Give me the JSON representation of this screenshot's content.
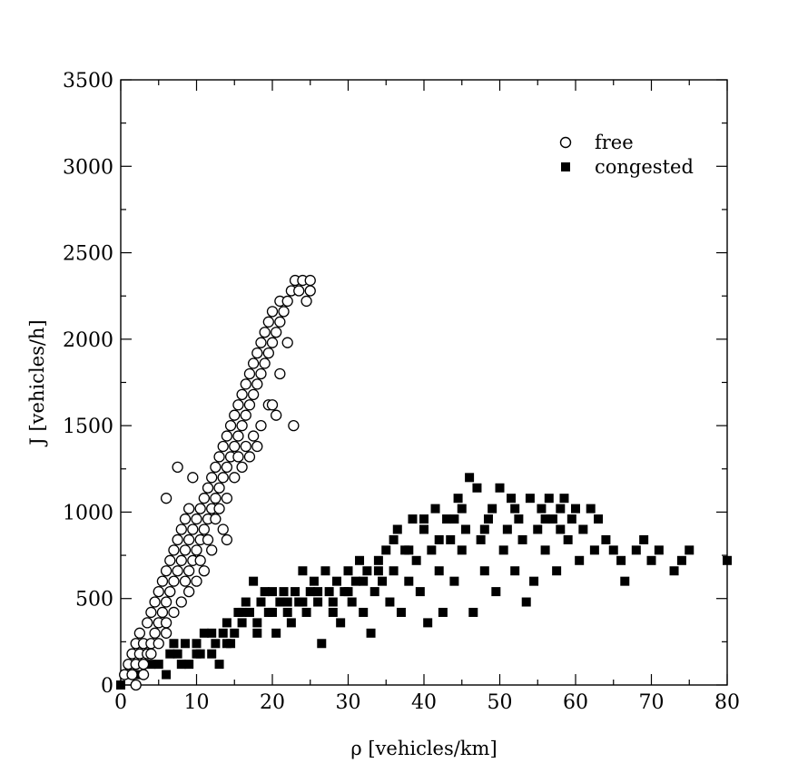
{
  "chart_data": {
    "type": "scatter",
    "title": "",
    "xlabel": "ρ [vehicles/km]",
    "ylabel": "J [vehicles/h]",
    "xlim": [
      0,
      80
    ],
    "ylim": [
      0,
      3500
    ],
    "xticks": [
      0,
      10,
      20,
      30,
      40,
      50,
      60,
      70,
      80
    ],
    "yticks": [
      0,
      500,
      1000,
      1500,
      2000,
      2500,
      3000,
      3500
    ],
    "xtick_labels": [
      "0",
      "10",
      "20",
      "30",
      "40",
      "50",
      "60",
      "70",
      "80"
    ],
    "ytick_labels": [
      "0",
      "500",
      "1000",
      "1500",
      "2000",
      "2500",
      "3000",
      "3500"
    ],
    "grid": false,
    "legend_position": "top-right",
    "series": [
      {
        "name": "free",
        "marker": "circle-open",
        "color": "#000000",
        "points": [
          [
            0.5,
            60
          ],
          [
            1,
            120
          ],
          [
            1.5,
            180
          ],
          [
            2,
            240
          ],
          [
            2.5,
            300
          ],
          [
            1.5,
            60
          ],
          [
            2,
            120
          ],
          [
            2.5,
            180
          ],
          [
            3,
            240
          ],
          [
            3,
            120
          ],
          [
            3.5,
            180
          ],
          [
            4,
            240
          ],
          [
            4.5,
            300
          ],
          [
            3.5,
            360
          ],
          [
            4,
            420
          ],
          [
            4.5,
            480
          ],
          [
            5,
            540
          ],
          [
            5,
            360
          ],
          [
            5.5,
            420
          ],
          [
            6,
            480
          ],
          [
            6,
            300
          ],
          [
            6.5,
            540
          ],
          [
            5.5,
            600
          ],
          [
            6,
            660
          ],
          [
            6.5,
            720
          ],
          [
            7,
            600
          ],
          [
            7,
            780
          ],
          [
            7.5,
            660
          ],
          [
            7.5,
            840
          ],
          [
            8,
            720
          ],
          [
            8,
            900
          ],
          [
            8.5,
            780
          ],
          [
            8.5,
            960
          ],
          [
            9,
            840
          ],
          [
            9,
            1020
          ],
          [
            9.5,
            900
          ],
          [
            9.5,
            720
          ],
          [
            10,
            960
          ],
          [
            10,
            780
          ],
          [
            10.5,
            840
          ],
          [
            10.5,
            1020
          ],
          [
            11,
            900
          ],
          [
            11,
            1080
          ],
          [
            11.5,
            960
          ],
          [
            11.5,
            1140
          ],
          [
            12,
            1020
          ],
          [
            12,
            1200
          ],
          [
            12.5,
            1080
          ],
          [
            12.5,
            1260
          ],
          [
            13,
            1140
          ],
          [
            13,
            1320
          ],
          [
            13.5,
            1200
          ],
          [
            13.5,
            1380
          ],
          [
            14,
            1260
          ],
          [
            14,
            1440
          ],
          [
            14.5,
            1320
          ],
          [
            14.5,
            1500
          ],
          [
            15,
            1380
          ],
          [
            15,
            1560
          ],
          [
            15.5,
            1440
          ],
          [
            15.5,
            1620
          ],
          [
            16,
            1500
          ],
          [
            16,
            1680
          ],
          [
            16.5,
            1560
          ],
          [
            16.5,
            1740
          ],
          [
            17,
            1620
          ],
          [
            17,
            1800
          ],
          [
            17.5,
            1680
          ],
          [
            17.5,
            1860
          ],
          [
            18,
            1740
          ],
          [
            18,
            1920
          ],
          [
            18.5,
            1800
          ],
          [
            18.5,
            1980
          ],
          [
            19,
            1860
          ],
          [
            19,
            2040
          ],
          [
            19.5,
            1920
          ],
          [
            19.5,
            2100
          ],
          [
            20,
            1980
          ],
          [
            20,
            2160
          ],
          [
            20.5,
            2040
          ],
          [
            21,
            2100
          ],
          [
            21,
            2220
          ],
          [
            21.5,
            2160
          ],
          [
            22,
            2220
          ],
          [
            22.5,
            2280
          ],
          [
            23,
            2340
          ],
          [
            23.5,
            2280
          ],
          [
            24,
            2340
          ],
          [
            24.5,
            2220
          ],
          [
            25,
            2280
          ],
          [
            25,
            2340
          ],
          [
            22.8,
            1500
          ],
          [
            20.5,
            1560
          ],
          [
            19.5,
            1620
          ],
          [
            18,
            1380
          ],
          [
            17,
            1320
          ],
          [
            16,
            1260
          ],
          [
            15,
            1200
          ],
          [
            14,
            1080
          ],
          [
            13.5,
            900
          ],
          [
            14,
            840
          ],
          [
            12,
            780
          ],
          [
            10,
            600
          ],
          [
            9,
            540
          ],
          [
            8,
            480
          ],
          [
            7,
            420
          ],
          [
            6,
            360
          ],
          [
            5,
            240
          ],
          [
            4,
            180
          ],
          [
            3,
            60
          ],
          [
            2,
            0
          ],
          [
            11,
            660
          ],
          [
            8.5,
            600
          ],
          [
            9.5,
            1200
          ],
          [
            7.5,
            1260
          ],
          [
            6,
            1080
          ],
          [
            21,
            1800
          ],
          [
            20,
            1620
          ],
          [
            22,
            1980
          ],
          [
            18.5,
            1500
          ],
          [
            17.5,
            1440
          ],
          [
            16.5,
            1380
          ],
          [
            15.5,
            1320
          ],
          [
            13,
            1020
          ],
          [
            12.5,
            960
          ],
          [
            11.5,
            840
          ],
          [
            10.5,
            720
          ],
          [
            9,
            660
          ]
        ]
      },
      {
        "name": "congested",
        "marker": "square-filled",
        "color": "#000000",
        "points": [
          [
            0,
            0
          ],
          [
            1.5,
            60
          ],
          [
            2.5,
            60
          ],
          [
            4,
            120
          ],
          [
            5,
            120
          ],
          [
            6,
            60
          ],
          [
            6.5,
            180
          ],
          [
            7.5,
            180
          ],
          [
            8.5,
            240
          ],
          [
            9,
            120
          ],
          [
            10,
            240
          ],
          [
            10.5,
            180
          ],
          [
            11,
            300
          ],
          [
            12,
            300
          ],
          [
            12.5,
            240
          ],
          [
            13,
            120
          ],
          [
            13.5,
            300
          ],
          [
            14,
            360
          ],
          [
            14.5,
            240
          ],
          [
            15,
            300
          ],
          [
            15.5,
            420
          ],
          [
            16,
            360
          ],
          [
            16.5,
            480
          ],
          [
            17,
            420
          ],
          [
            17.5,
            600
          ],
          [
            18,
            360
          ],
          [
            18.5,
            480
          ],
          [
            19,
            540
          ],
          [
            19.5,
            420
          ],
          [
            20,
            540
          ],
          [
            20.5,
            300
          ],
          [
            21,
            480
          ],
          [
            21.5,
            540
          ],
          [
            22,
            420
          ],
          [
            22.5,
            360
          ],
          [
            23,
            540
          ],
          [
            23.5,
            480
          ],
          [
            24,
            660
          ],
          [
            24.5,
            420
          ],
          [
            25,
            540
          ],
          [
            25.5,
            600
          ],
          [
            26,
            480
          ],
          [
            26.5,
            240
          ],
          [
            27,
            660
          ],
          [
            27.5,
            540
          ],
          [
            28,
            420
          ],
          [
            28.5,
            600
          ],
          [
            29,
            360
          ],
          [
            29.5,
            540
          ],
          [
            30,
            660
          ],
          [
            30.5,
            480
          ],
          [
            31,
            600
          ],
          [
            31.5,
            720
          ],
          [
            32,
            420
          ],
          [
            32.5,
            660
          ],
          [
            33,
            300
          ],
          [
            33.5,
            540
          ],
          [
            34,
            720
          ],
          [
            34.5,
            600
          ],
          [
            35,
            780
          ],
          [
            35.5,
            480
          ],
          [
            36,
            660
          ],
          [
            36.5,
            900
          ],
          [
            37,
            420
          ],
          [
            37.5,
            780
          ],
          [
            38,
            600
          ],
          [
            38.5,
            960
          ],
          [
            39,
            720
          ],
          [
            39.5,
            540
          ],
          [
            40,
            900
          ],
          [
            40.5,
            360
          ],
          [
            41,
            780
          ],
          [
            41.5,
            1020
          ],
          [
            42,
            660
          ],
          [
            42.5,
            420
          ],
          [
            43,
            960
          ],
          [
            43.5,
            840
          ],
          [
            44,
            600
          ],
          [
            44.5,
            1080
          ],
          [
            45,
            780
          ],
          [
            45.5,
            900
          ],
          [
            46,
            1200
          ],
          [
            46.5,
            420
          ],
          [
            47,
            1140
          ],
          [
            47.5,
            840
          ],
          [
            48,
            660
          ],
          [
            48.5,
            960
          ],
          [
            49,
            1020
          ],
          [
            49.5,
            540
          ],
          [
            50,
            1140
          ],
          [
            50.5,
            780
          ],
          [
            51,
            900
          ],
          [
            51.5,
            1080
          ],
          [
            52,
            660
          ],
          [
            52.5,
            960
          ],
          [
            53,
            840
          ],
          [
            53.5,
            480
          ],
          [
            54,
            1080
          ],
          [
            54.5,
            600
          ],
          [
            55,
            900
          ],
          [
            55.5,
            1020
          ],
          [
            56,
            780
          ],
          [
            56.5,
            1080
          ],
          [
            57,
            960
          ],
          [
            57.5,
            660
          ],
          [
            58,
            900
          ],
          [
            58.5,
            1080
          ],
          [
            59,
            840
          ],
          [
            59.5,
            960
          ],
          [
            60,
            1020
          ],
          [
            60.5,
            720
          ],
          [
            61,
            900
          ],
          [
            62,
            1020
          ],
          [
            62.5,
            780
          ],
          [
            63,
            960
          ],
          [
            64,
            840
          ],
          [
            65,
            780
          ],
          [
            66,
            720
          ],
          [
            66.5,
            600
          ],
          [
            68,
            780
          ],
          [
            69,
            840
          ],
          [
            70,
            720
          ],
          [
            71,
            780
          ],
          [
            73,
            660
          ],
          [
            74,
            720
          ],
          [
            75,
            780
          ],
          [
            80,
            720
          ],
          [
            44,
            960
          ],
          [
            45,
            1020
          ],
          [
            48,
            900
          ],
          [
            52,
            1020
          ],
          [
            56,
            960
          ],
          [
            58,
            1020
          ],
          [
            42,
            840
          ],
          [
            40,
            960
          ],
          [
            38,
            780
          ],
          [
            36,
            840
          ],
          [
            34,
            660
          ],
          [
            32,
            600
          ],
          [
            30,
            540
          ],
          [
            28,
            480
          ],
          [
            26,
            540
          ],
          [
            24,
            480
          ],
          [
            22,
            480
          ],
          [
            20,
            420
          ],
          [
            18,
            300
          ],
          [
            16,
            420
          ],
          [
            14,
            240
          ],
          [
            12,
            180
          ],
          [
            10,
            180
          ],
          [
            8,
            120
          ],
          [
            7,
            240
          ]
        ]
      }
    ]
  }
}
